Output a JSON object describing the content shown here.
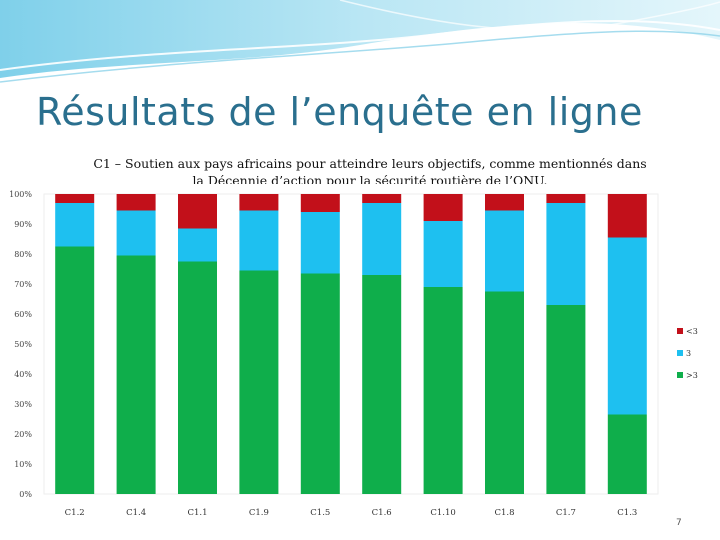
{
  "slide": {
    "title": "Résultats de l’enquête en ligne",
    "page_number": "7"
  },
  "chart_data": {
    "type": "bar",
    "stacked": true,
    "title_line1": "C1 – Soutien aux pays africains pour atteindre leurs objectifs, comme mentionnés dans",
    "title_line2": "la Décennie d’action pour la sécurité routière de l’ONU.",
    "categories": [
      "C1.2",
      "C1.4",
      "C1.1",
      "C1.9",
      "C1.5",
      "C1.6",
      "C1.10",
      "C1.8",
      "C1.7",
      "C1.3"
    ],
    "ylim": [
      0,
      100
    ],
    "yticks": [
      0,
      10,
      20,
      30,
      40,
      50,
      60,
      70,
      80,
      90,
      100
    ],
    "ytick_labels": [
      "0%",
      "10%",
      "20%",
      "30%",
      "40%",
      "50%",
      "60%",
      "70%",
      "80%",
      "90%",
      "100%"
    ],
    "series": [
      {
        "name": ">3",
        "color": "#0fae4b",
        "values": [
          82.5,
          79.5,
          77.5,
          74.5,
          73.5,
          73,
          69,
          67.5,
          63,
          26.5
        ]
      },
      {
        "name": "3",
        "color": "#1ec0f0",
        "values": [
          14.5,
          15,
          11,
          20,
          20.5,
          24,
          22,
          27,
          34,
          59
        ]
      },
      {
        "name": "<3",
        "color": "#c2101a",
        "values": [
          3,
          5.5,
          11.5,
          5.5,
          6,
          3,
          9,
          5.5,
          3,
          14.5
        ]
      }
    ],
    "legend": [
      "<3",
      "3",
      ">3"
    ],
    "legend_position": "right",
    "grid": false
  }
}
